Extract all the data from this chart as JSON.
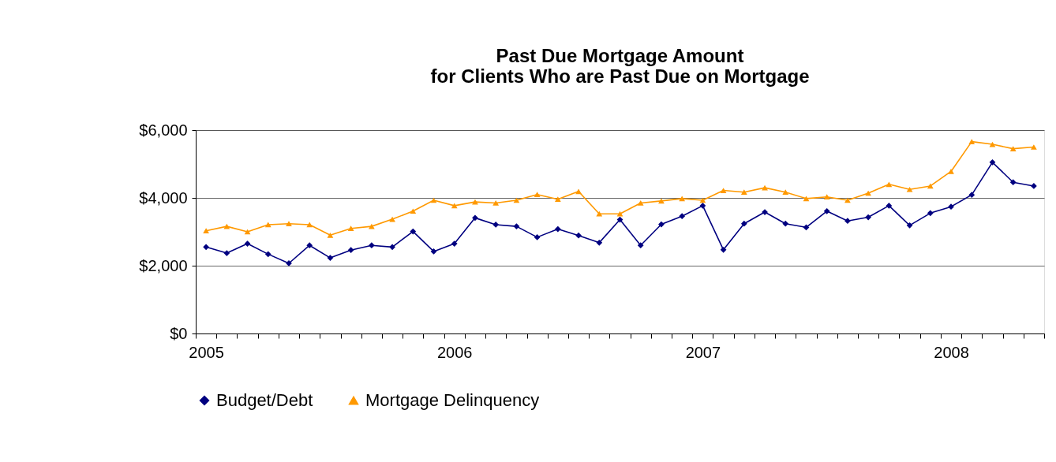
{
  "chart_data": {
    "type": "line",
    "title": "Past Due Mortgage Amount\nfor Clients Who are Past Due on Mortgage",
    "categories": [
      "2005",
      null,
      null,
      null,
      null,
      null,
      null,
      null,
      null,
      null,
      null,
      null,
      "2006",
      null,
      null,
      null,
      null,
      null,
      null,
      null,
      null,
      null,
      null,
      null,
      "2007",
      null,
      null,
      null,
      null,
      null,
      null,
      null,
      null,
      null,
      null,
      null,
      "2008",
      null,
      null,
      null,
      null
    ],
    "series": [
      {
        "name": "Budget/Debt",
        "color": "#000080",
        "marker": "diamond",
        "values": [
          2550,
          2370,
          2650,
          2340,
          2070,
          2600,
          2230,
          2460,
          2600,
          2550,
          3010,
          2420,
          2650,
          3410,
          3210,
          3160,
          2840,
          3080,
          2890,
          2680,
          3360,
          2600,
          3220,
          3460,
          3770,
          2470,
          3240,
          3580,
          3240,
          3130,
          3610,
          3320,
          3430,
          3770,
          3190,
          3550,
          3740,
          4090,
          5050,
          4460,
          4350
        ]
      },
      {
        "name": "Mortgage Delinquency",
        "color": "#ff9900",
        "marker": "triangle",
        "values": [
          3030,
          3160,
          3000,
          3210,
          3240,
          3210,
          2900,
          3100,
          3160,
          3370,
          3610,
          3930,
          3770,
          3880,
          3850,
          3930,
          4100,
          3960,
          4190,
          3530,
          3530,
          3850,
          3910,
          3980,
          3930,
          4220,
          4170,
          4300,
          4170,
          3980,
          4030,
          3930,
          4140,
          4400,
          4250,
          4350,
          4780,
          5660,
          5580,
          5450,
          5500
        ]
      }
    ],
    "ylim": [
      0,
      6000
    ],
    "yticks": [
      {
        "value": 0,
        "label": "$0"
      },
      {
        "value": 2000,
        "label": "$2,000"
      },
      {
        "value": 4000,
        "label": "$4,000"
      },
      {
        "value": 6000,
        "label": "$6,000"
      }
    ],
    "grid": "y",
    "legend": "bottom",
    "line_style": "solid"
  }
}
